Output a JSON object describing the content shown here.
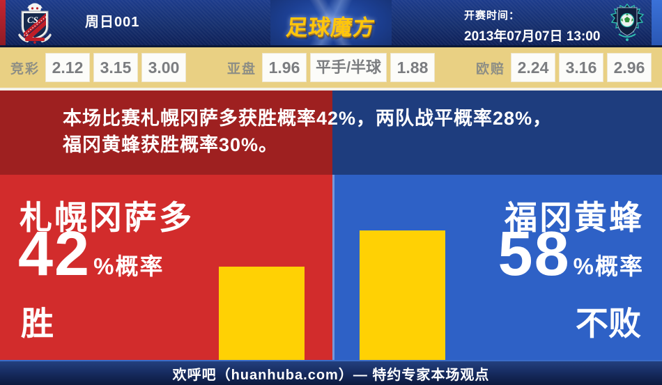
{
  "topbar": {
    "match_id": "周日001",
    "brand": "足球魔方",
    "kickoff_label": "开赛时间：",
    "kickoff_time": "2013年07月07日 13:00",
    "home_crest": "consadole-sapporo-crest",
    "away_crest": "avispa-fukuoka-crest"
  },
  "oddsbar": {
    "groups": [
      {
        "label": "竞彩",
        "values": [
          "2.12",
          "3.15",
          "3.00"
        ]
      },
      {
        "label": "亚盘",
        "values": [
          "1.96",
          "平手/半球",
          "1.88"
        ]
      },
      {
        "label": "欧赔",
        "values": [
          "2.24",
          "3.16",
          "2.96"
        ]
      }
    ]
  },
  "banner": {
    "line1": "本场比赛札幌冈萨多获胜概率42%，两队战平概率28%，",
    "line2": "福冈黄蜂获胜概率30%。"
  },
  "home": {
    "name": "札幌冈萨多",
    "percent": "42",
    "percent_suffix": "%概率",
    "outcome": "胜"
  },
  "away": {
    "name": "福冈黄蜂",
    "percent": "58",
    "percent_suffix": "%概率",
    "outcome": "不败"
  },
  "footer": {
    "text": "欢呼吧（huanhuba.com）— 特约专家本场观点"
  },
  "colors": {
    "dark_red": "#9e2020",
    "bright_red": "#d22c2c",
    "dark_blue": "#1e3d7e",
    "bright_blue": "#2e61c6",
    "bar_yellow": "#ffd104",
    "odds_bg_tan": "#e9d083",
    "brand_gold": "#ffc60b",
    "topbar_navy": "#16306f"
  },
  "chart_data": {
    "type": "bar",
    "categories": [
      "札幌冈萨多 胜",
      "福冈黄蜂 不败"
    ],
    "values": [
      42,
      58
    ],
    "title": "",
    "xlabel": "",
    "ylabel": "概率 %",
    "ylim": [
      0,
      100
    ],
    "bar_color": "#ffd104",
    "legend": false,
    "grid": false
  }
}
